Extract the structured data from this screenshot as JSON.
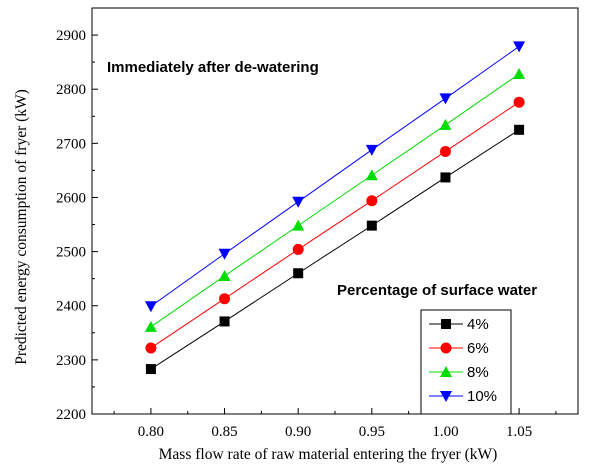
{
  "chart_data": {
    "type": "line",
    "xlabel": "Mass flow rate of raw material entering the fryer (kW)",
    "ylabel": "Predicted energy consumption of fryer (kW)",
    "xlim": [
      0.76,
      1.09
    ],
    "ylim": [
      2200,
      2950
    ],
    "x_ticks": [
      "0.80",
      "0.85",
      "0.90",
      "0.95",
      "1.00",
      "1.05"
    ],
    "y_ticks": [
      "2200",
      "2300",
      "2400",
      "2500",
      "2600",
      "2700",
      "2800",
      "2900"
    ],
    "x": [
      0.8,
      0.85,
      0.9,
      0.95,
      1.0,
      1.05
    ],
    "series": [
      {
        "name": "4%",
        "color": "#000000",
        "marker": "square",
        "values": [
          2283,
          2371,
          2460,
          2548,
          2637,
          2725
        ]
      },
      {
        "name": "6%",
        "color": "#ff0000",
        "marker": "circle",
        "values": [
          2322,
          2413,
          2504,
          2594,
          2685,
          2776
        ]
      },
      {
        "name": "8%",
        "color": "#00dd00",
        "marker": "triangle-up",
        "values": [
          2361,
          2455,
          2548,
          2641,
          2734,
          2828
        ]
      },
      {
        "name": "10%",
        "color": "#0000ff",
        "marker": "triangle-down",
        "values": [
          2399,
          2496,
          2592,
          2688,
          2783,
          2879
        ]
      }
    ],
    "annotations": [
      "Immediately after de-watering",
      "Percentage of surface water"
    ],
    "legend_placement": "bottom-right",
    "grid": false
  }
}
